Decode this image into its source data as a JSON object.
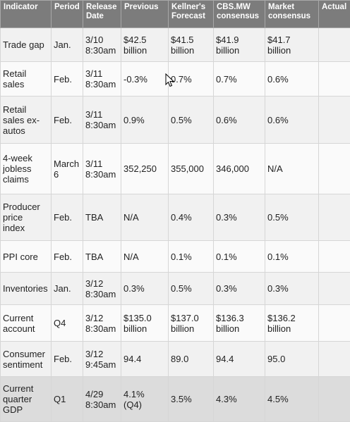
{
  "table": {
    "headers": [
      "Indicator",
      "Period",
      "Release\nDate",
      "Previous",
      "Kellner's\nForecast",
      "CBS.MW\nconsensus",
      "Market\nconsensus",
      "Actual"
    ],
    "rows": [
      [
        "Trade gap",
        "Jan.",
        "3/10\n8:30am",
        "$42.5\nbillion",
        "$41.5\nbillion",
        "$41.9\nbillion",
        "$41.7\nbillion",
        ""
      ],
      [
        "Retail\nsales",
        "Feb.",
        "3/11\n8:30am",
        "-0.3%",
        "0.7%",
        "0.7%",
        "0.6%",
        ""
      ],
      [
        "Retail\nsales ex-\nautos",
        "Feb.",
        "3/11\n8:30am",
        "0.9%",
        "0.5%",
        "0.6%",
        "0.6%",
        ""
      ],
      [
        "4-week\njobless\nclaims",
        "March\n6",
        "3/11\n8:30am",
        "352,250",
        "355,000",
        "346,000",
        "N/A",
        ""
      ],
      [
        "Producer\nprice\nindex",
        "Feb.",
        "TBA",
        "N/A",
        "0.4%",
        "0.3%",
        "0.5%",
        ""
      ],
      [
        "PPI core",
        "Feb.",
        "TBA",
        "N/A",
        "0.1%",
        "0.1%",
        "0.1%",
        ""
      ],
      [
        "Inventories",
        "Jan.",
        "3/12\n8:30am",
        "0.3%",
        "0.5%",
        "0.3%",
        "0.3%",
        ""
      ],
      [
        "Current\naccount",
        "Q4",
        "3/12\n8:30am",
        "$135.0\nbillion",
        "$137.0\nbillion",
        "$136.3\nbillion",
        "$136.2\nbillion",
        ""
      ],
      [
        "Consumer\nsentiment",
        "Feb.",
        "3/12\n9:45am",
        "94.4",
        "89.0",
        "94.4",
        "95.0",
        ""
      ],
      [
        "Current\nquarter\nGDP",
        "Q1",
        "4/29\n8:30am",
        "4.1%\n(Q4)",
        "3.5%",
        "4.3%",
        "4.5%",
        ""
      ]
    ]
  },
  "colors": {
    "header_bg": "#7c7c7c",
    "row_odd": "#f1f1f1",
    "row_even": "#fafafa",
    "row_last": "#dcdcdc"
  },
  "cursor": {
    "icon": "mouse-pointer-icon"
  }
}
